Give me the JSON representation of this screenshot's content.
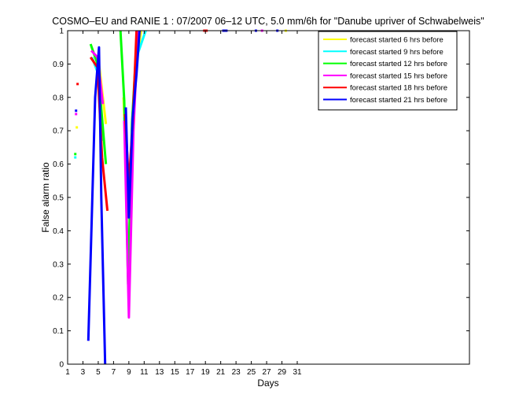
{
  "chart_data": {
    "type": "line",
    "title": "COSMO–EU and RANIE 1 : 07/2007 06–12 UTC, 5.0 mm/6h for \"Danube upriver of Schwabelweis\"",
    "xlabel": "Days",
    "ylabel": "False alarm ratio",
    "xlim": [
      1,
      53.5
    ],
    "ylim": [
      0,
      1
    ],
    "xticks": [
      1,
      3,
      5,
      7,
      9,
      11,
      13,
      15,
      17,
      19,
      21,
      23,
      25,
      27,
      29,
      31
    ],
    "yticks": [
      0,
      0.1,
      0.2,
      0.3,
      0.4,
      0.5,
      0.6,
      0.7,
      0.8,
      0.9,
      1
    ],
    "legend_position": "top-right",
    "series": [
      {
        "name": "forecast started 6 hrs before",
        "color": "#ffff00",
        "points": [
          [
            2.2,
            0.71
          ],
          [
            null,
            null
          ],
          [
            5.1,
            0.9
          ],
          [
            6.0,
            0.72
          ],
          [
            null,
            null
          ],
          [
            8.3,
            0.8
          ],
          [
            8.8,
            0.52
          ],
          [
            9.4,
            0.6
          ],
          [
            9.9,
            0.88
          ],
          [
            10.6,
            1.0
          ],
          [
            null,
            null
          ],
          [
            29.5,
            1.0
          ]
        ]
      },
      {
        "name": "forecast started 9 hrs before",
        "color": "#00ffff",
        "points": [
          [
            2.0,
            0.62
          ],
          [
            null,
            null
          ],
          [
            4.2,
            0.92
          ],
          [
            5.0,
            0.87
          ],
          [
            5.6,
            0.67
          ],
          [
            null,
            null
          ],
          [
            8.4,
            0.74
          ],
          [
            8.9,
            0.44
          ],
          [
            9.5,
            0.75
          ],
          [
            10.0,
            0.92
          ],
          [
            11.2,
            1.0
          ]
        ]
      },
      {
        "name": "forecast started 12 hrs before",
        "color": "#00ff00",
        "points": [
          [
            2.0,
            0.63
          ],
          [
            null,
            null
          ],
          [
            4.0,
            0.96
          ],
          [
            4.9,
            0.9
          ],
          [
            6.0,
            0.6
          ],
          [
            null,
            null
          ],
          [
            7.9,
            1.0
          ],
          [
            8.4,
            0.79
          ],
          [
            8.9,
            0.24
          ],
          [
            9.4,
            0.72
          ],
          [
            10.1,
            1.0
          ]
        ]
      },
      {
        "name": "forecast started 15 hrs before",
        "color": "#ff00ff",
        "points": [
          [
            2.1,
            0.75
          ],
          [
            null,
            null
          ],
          [
            4.1,
            0.94
          ],
          [
            4.9,
            0.92
          ],
          [
            5.6,
            0.78
          ],
          [
            null,
            null
          ],
          [
            8.4,
            0.73
          ],
          [
            9.0,
            0.14
          ],
          [
            9.6,
            0.7
          ],
          [
            10.2,
            1.0
          ],
          [
            null,
            null
          ],
          [
            26.4,
            1.0
          ]
        ]
      },
      {
        "name": "forecast started 18 hrs before",
        "color": "#ff0000",
        "points": [
          [
            2.3,
            0.84
          ],
          [
            null,
            null
          ],
          [
            4.0,
            0.92
          ],
          [
            4.9,
            0.89
          ],
          [
            5.5,
            0.62
          ],
          [
            6.2,
            0.46
          ],
          [
            null,
            null
          ],
          [
            8.5,
            0.75
          ],
          [
            9.0,
            0.54
          ],
          [
            9.5,
            0.72
          ],
          [
            10.0,
            1.0
          ],
          [
            null,
            null
          ],
          [
            18.7,
            1.0
          ],
          [
            19.3,
            1.0
          ]
        ]
      },
      {
        "name": "forecast started 21 hrs before",
        "color": "#0000ff",
        "points": [
          [
            2.1,
            0.76
          ],
          [
            null,
            null
          ],
          [
            3.7,
            0.07
          ],
          [
            4.6,
            0.8
          ],
          [
            5.1,
            0.95
          ],
          [
            5.4,
            0.5
          ],
          [
            5.9,
            0.0
          ],
          [
            null,
            null
          ],
          [
            8.6,
            0.77
          ],
          [
            9.0,
            0.44
          ],
          [
            9.5,
            0.74
          ],
          [
            10.0,
            0.87
          ],
          [
            10.4,
            1.0
          ],
          [
            null,
            null
          ],
          [
            21.2,
            1.0
          ],
          [
            21.9,
            1.0
          ],
          [
            null,
            null
          ],
          [
            25.6,
            1.0
          ],
          [
            null,
            null
          ],
          [
            28.4,
            1.0
          ]
        ]
      }
    ]
  }
}
